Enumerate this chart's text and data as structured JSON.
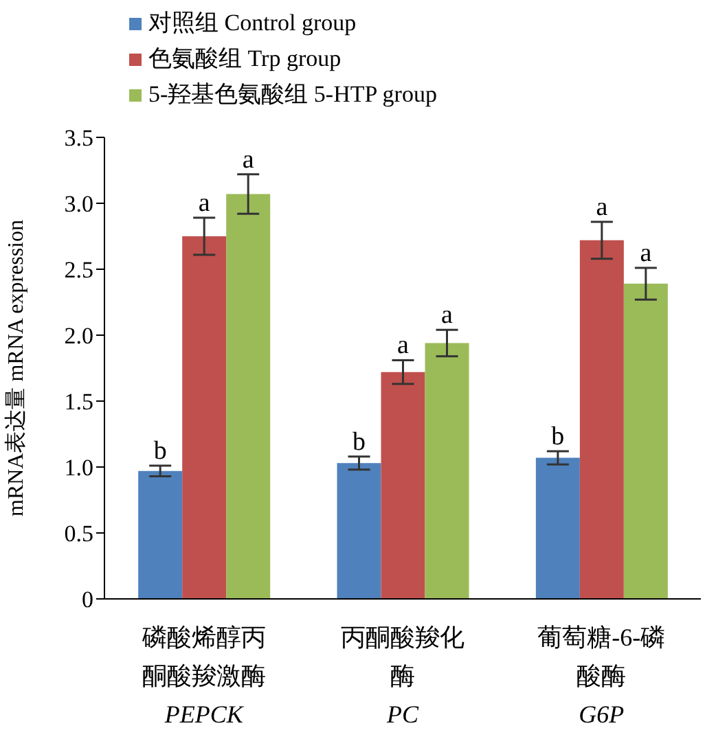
{
  "chart_data": {
    "type": "bar",
    "ylabel": "mRNA表达量 mRNA expression",
    "categories": [
      "磷酸烯醇丙酮酸羧激酶\nPEPCK",
      "丙酮酸羧化酶\nPC",
      "葡萄糖-6-磷酸酶\nG6P"
    ],
    "series": [
      {
        "name": "对照组  Control group",
        "color": "#4f81bd",
        "values": [
          0.97,
          1.03,
          1.07
        ],
        "errors": [
          0.04,
          0.05,
          0.05
        ],
        "value_labels": [
          "b",
          "b",
          "b"
        ]
      },
      {
        "name": "色氨酸组  Trp group",
        "color": "#c0504d",
        "values": [
          2.75,
          1.72,
          2.72
        ],
        "errors": [
          0.14,
          0.09,
          0.14
        ],
        "value_labels": [
          "a",
          "a",
          "a"
        ]
      },
      {
        "name": "5-羟基色氨酸组  5-HTP group",
        "color": "#9bbb59",
        "values": [
          3.07,
          1.94,
          2.39
        ],
        "errors": [
          0.15,
          0.1,
          0.12
        ],
        "value_labels": [
          "a",
          "a",
          "a"
        ]
      }
    ],
    "ylim": [
      0,
      3.5
    ],
    "yticks": [
      0,
      {
        "value": 0.5,
        "label": "0.5"
      },
      {
        "value": 1,
        "label": "1.0"
      },
      {
        "value": 1.5,
        "label": "1.5"
      },
      {
        "value": 2,
        "label": "2.0"
      },
      {
        "value": 2.5,
        "label": "2.5"
      },
      {
        "value": 3,
        "label": "3.0"
      },
      {
        "value": 3.5,
        "label": "3.5"
      }
    ],
    "legend": "top left",
    "grid": false
  }
}
